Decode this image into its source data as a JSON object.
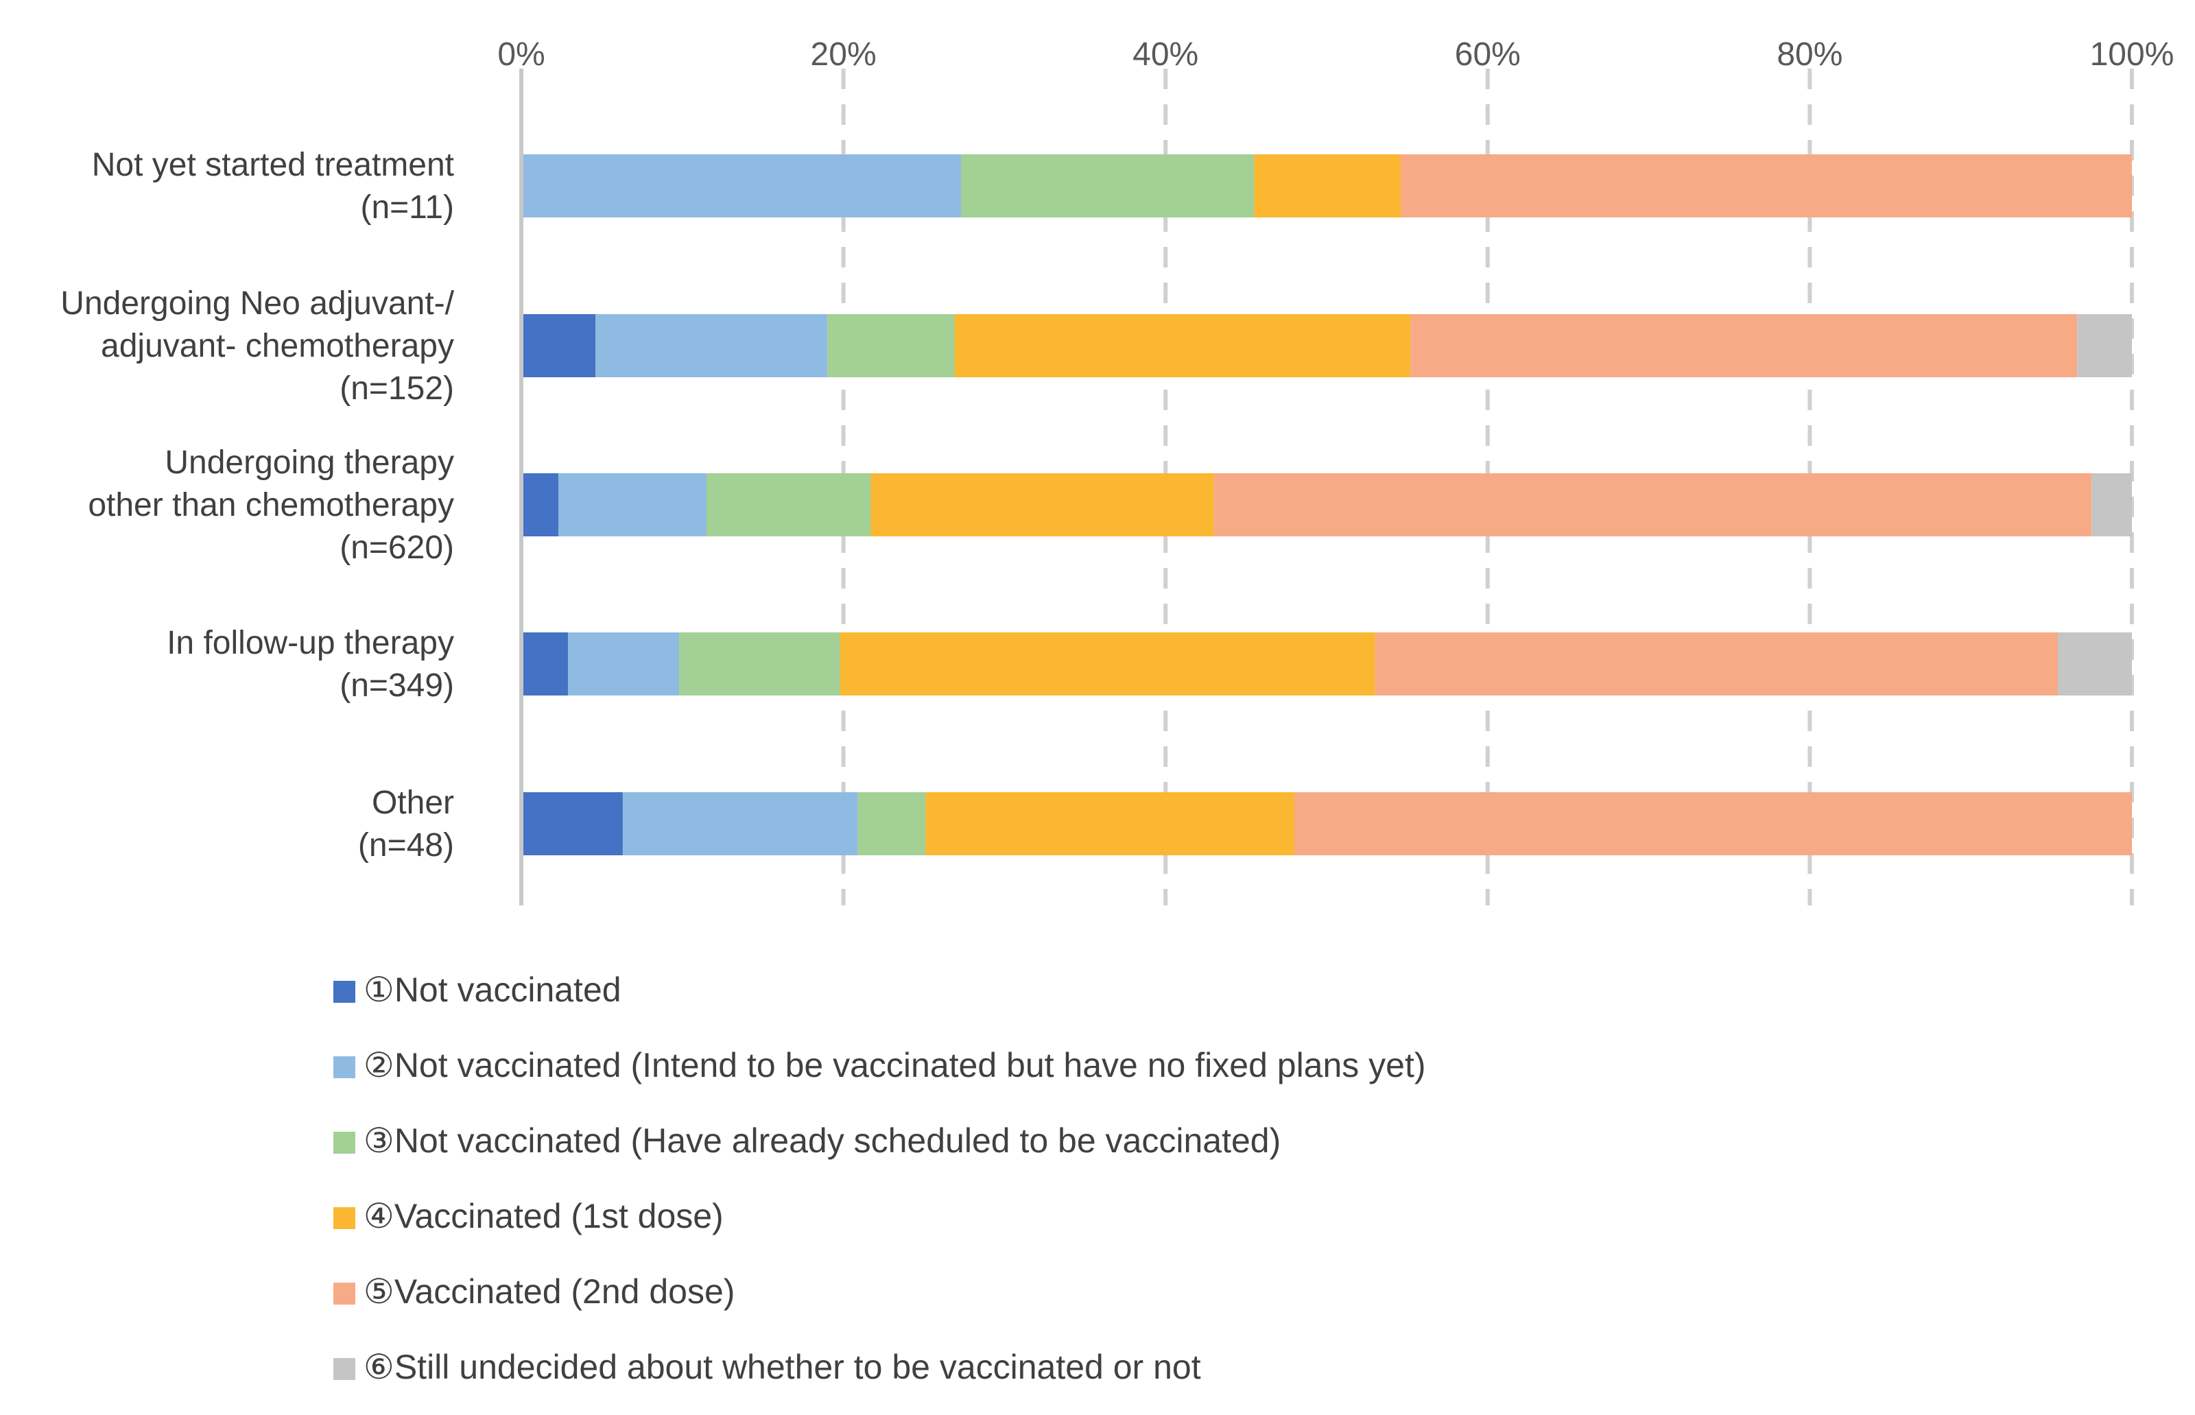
{
  "chart_data": {
    "type": "bar",
    "orientation": "horizontal",
    "stacked": "percent",
    "xlim": [
      0,
      100
    ],
    "x_ticks": [
      "0%",
      "20%",
      "40%",
      "60%",
      "80%",
      "100%"
    ],
    "x_tick_values": [
      0,
      20,
      40,
      60,
      80,
      100
    ],
    "grid": "vertical dashed",
    "legend_position": "bottom",
    "categories": [
      [
        "Not yet started treatment",
        "(n=11)"
      ],
      [
        "Undergoing Neo adjuvant-/",
        "adjuvant- chemotherapy",
        "(n=152)"
      ],
      [
        "Undergoing therapy",
        "other than chemotherapy",
        "(n=620)"
      ],
      [
        "In follow-up therapy",
        "(n=349)"
      ],
      [
        "Other",
        "(n=48)"
      ]
    ],
    "series": [
      {
        "name": "①Not vaccinated",
        "color": "#4472C4",
        "values": [
          0,
          4.6,
          2.3,
          2.9,
          6.3
        ]
      },
      {
        "name": "②Not vaccinated (Intend to be vaccinated but have no fixed plans yet)",
        "color": "#8FBBE3",
        "values": [
          27.3,
          14.4,
          9.2,
          6.9,
          14.6
        ]
      },
      {
        "name": "③Not vaccinated (Have already scheduled to be vaccinated)",
        "color": "#A3D095",
        "values": [
          18.2,
          7.9,
          10.2,
          10.0,
          4.2
        ]
      },
      {
        "name": "④Vaccinated (1st dose)",
        "color": "#FBB731",
        "values": [
          9.1,
          28.3,
          21.3,
          33.2,
          22.9
        ]
      },
      {
        "name": "⑤Vaccinated (2nd dose)",
        "color": "#F7AA86",
        "values": [
          45.4,
          41.4,
          54.5,
          42.4,
          52.0
        ]
      },
      {
        "name": "⑥Still undecided about whether to be vaccinated or not",
        "color": "#C5C5C5",
        "values": [
          0,
          3.4,
          2.5,
          4.6,
          0
        ]
      }
    ]
  }
}
